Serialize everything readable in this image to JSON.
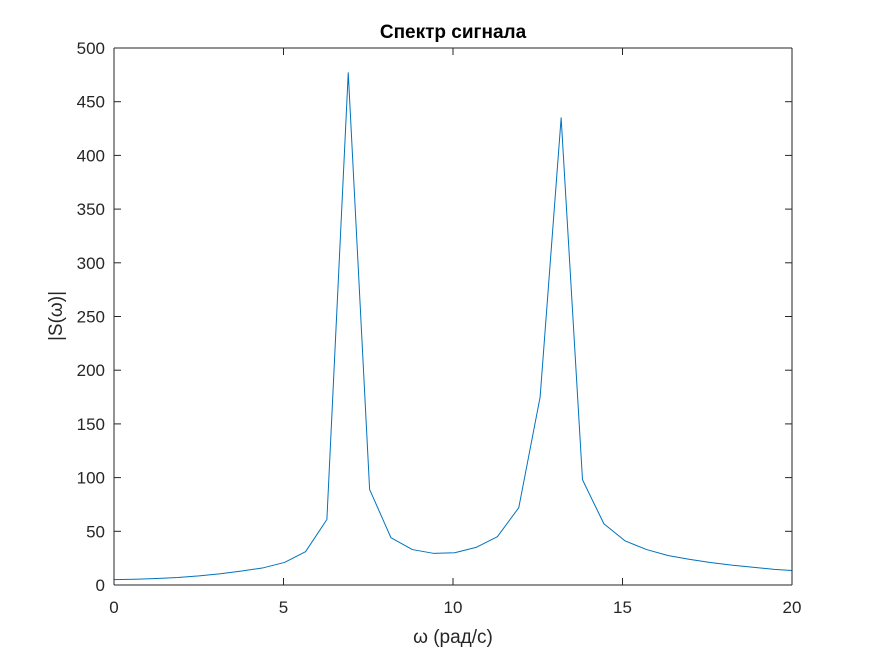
{
  "chart_data": {
    "type": "line",
    "title": "Спектр сигнала",
    "xlabel": "ω (рад/с)",
    "ylabel": "|S(ω)|",
    "xlim": [
      0,
      20
    ],
    "ylim": [
      0,
      500
    ],
    "xticks": [
      0,
      5,
      10,
      15,
      20
    ],
    "yticks": [
      0,
      50,
      100,
      150,
      200,
      250,
      300,
      350,
      400,
      450,
      500
    ],
    "grid": false,
    "box": true,
    "series": [
      {
        "color": "#0072BD",
        "x": [
          0,
          0.63,
          1.26,
          1.88,
          2.51,
          3.14,
          3.77,
          4.4,
          5.03,
          5.65,
          6.28,
          6.91,
          7.54,
          8.17,
          8.8,
          9.42,
          10.05,
          10.68,
          11.31,
          11.94,
          12.57,
          13.19,
          13.82,
          14.45,
          15.08,
          15.71,
          16.34,
          16.96,
          17.59,
          18.22,
          18.85,
          19.48,
          20.0
        ],
        "y": [
          5,
          5.3,
          6,
          7,
          8.5,
          10.5,
          13,
          16,
          21,
          31,
          61,
          477,
          89,
          44,
          33,
          29.5,
          30,
          35,
          45,
          72,
          175,
          435,
          98,
          57,
          41,
          33,
          27.5,
          24,
          21,
          18.5,
          16.5,
          14.5,
          13.5
        ]
      }
    ]
  }
}
